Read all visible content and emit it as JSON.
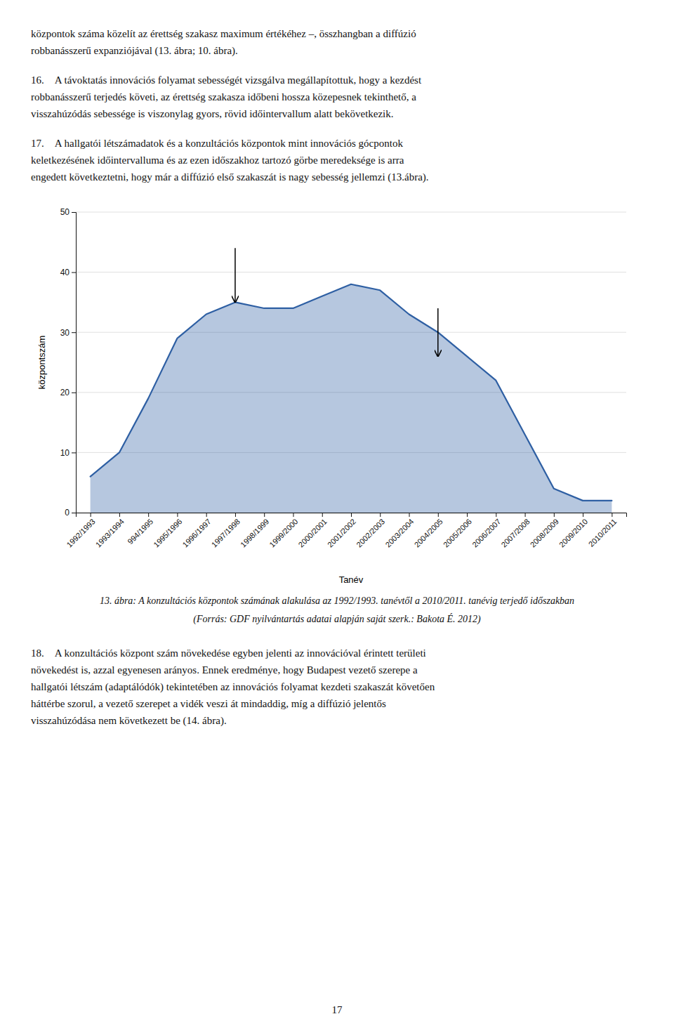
{
  "texts": {
    "top": [
      "központok száma közelít az érettség szakasz maximum értékéhez –, összhangban a diffúzió\nrobbanásszerű expanziójával (13. ábra; 10. ábra).",
      "16. A távoktatás innovációs folyamat sebességét vizsgálva megállapítottuk, hogy a kezdést\nrobbanásszerű terjedés követi, az érettség szakasza időbeni hossza közepesnek tekinthető, a\nvisszahúzódás sebessége is viszonylag gyors, rövid időintervallum alatt bekövetkezik.",
      "17. A hallgatói létszámadatok és a konzultációs központok mint innovációs gócpontok\nkeletkezésének időintervalluma és az ezen időszakhoz tartozó görbe meredeksége is arra\nengedett következtetni, hogy már a diffúzió első szakaszát is nagy sebesség jellemzi (13.ábra)."
    ],
    "bottom": [
      "18. A konzultációs központ szám növekedése egyben jelenti az innovációval érintett területi\nnövekedést is, azzal egyenesen arányos. Ennek eredménye, hogy Budapest vezető szerepe a\nhallgatói létszám (adaptálódók) tekintetében az innovációs folyamat kezdeti szakaszát követően\nháttérbe szorul, a vezető szerepet a vidék veszi át mindaddig, míg a diffúzió jelentős\nvisszahúzódása nem következett be (14. ábra)."
    ],
    "page_number": "17"
  },
  "chart_data": {
    "type": "area",
    "title": "13. ábra: A konzultációs központok számának alakulása az 1992/1993. tanévtől a 2010/2011. tanévig terjedő időszakban",
    "subtitle": "(Forrás: GDF nyilvántartás adatai alapján saját szerk.: Bakota É. 2012)",
    "x_label": "Tanév",
    "y_label": "központszám",
    "categories": [
      "1992/1993",
      "1993/1994",
      "994/1995",
      "1995/1996",
      "1996/1997",
      "1997/1998",
      "1998/1999",
      "1999/2000",
      "2000/2001",
      "2001/2002",
      "2002/2003",
      "2003/2004",
      "2004/2005",
      "2005/2006",
      "2006/2007",
      "2007/2008",
      "2008/2009",
      "2009/2010",
      "2010/2011"
    ],
    "values": [
      6,
      10,
      19,
      29,
      33,
      35,
      34,
      34,
      36,
      38,
      37,
      33,
      30,
      26,
      22,
      13,
      4,
      2,
      2
    ],
    "color": "#2E5FA3",
    "ylim": [
      0,
      50
    ],
    "yticks": [
      0,
      10,
      20,
      30,
      40,
      50
    ],
    "grid": true,
    "arrows": [
      {
        "category": "1997/1998",
        "from": 44,
        "to": 35
      },
      {
        "category": "2004/2005",
        "from": 34,
        "to": 26
      }
    ]
  }
}
